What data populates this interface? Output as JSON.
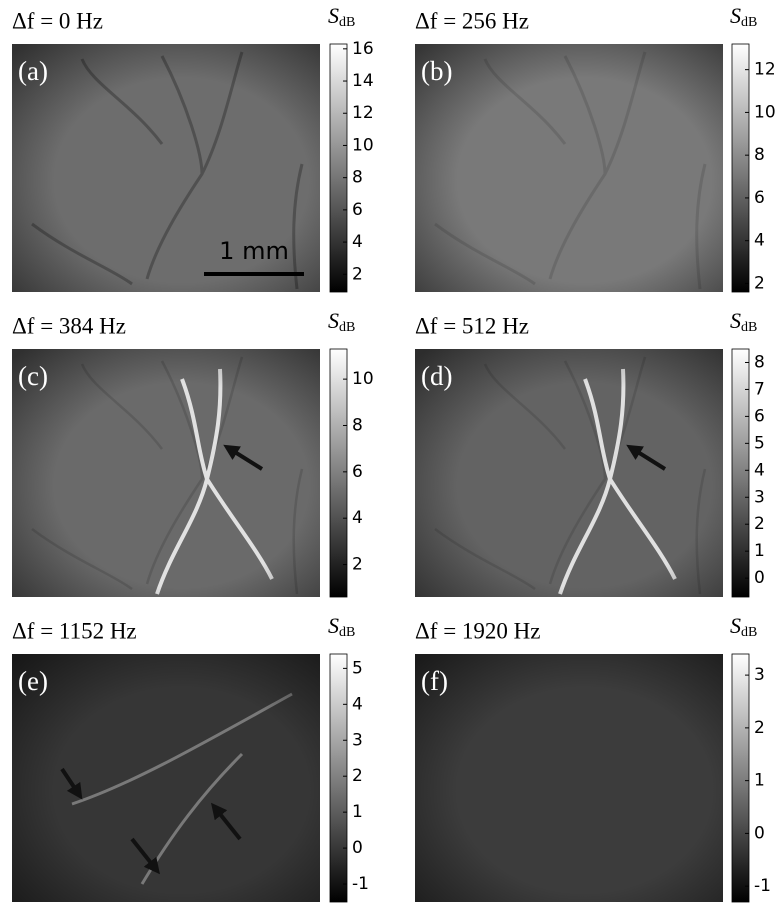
{
  "chart_data": [
    {
      "type": "image",
      "title": "Δf = 0 Hz",
      "panel_label": "(a)",
      "colorbar_label": "S",
      "colorbar_label_sub": "dB",
      "clim": [
        0.9,
        16.3
      ],
      "cticks": [
        2,
        4,
        6,
        8,
        10,
        12,
        14,
        16
      ],
      "scale_bar_label": "1 mm"
    },
    {
      "type": "image",
      "title": "Δf = 256 Hz",
      "panel_label": "(b)",
      "colorbar_label": "S",
      "colorbar_label_sub": "dB",
      "clim": [
        1.6,
        13.2
      ],
      "cticks": [
        2,
        4,
        6,
        8,
        10,
        12
      ]
    },
    {
      "type": "image",
      "title": "Δf = 384 Hz",
      "panel_label": "(c)",
      "colorbar_label": "S",
      "colorbar_label_sub": "dB",
      "clim": [
        0.6,
        11.3
      ],
      "cticks": [
        2,
        4,
        6,
        8,
        10
      ]
    },
    {
      "type": "image",
      "title": "Δf = 512 Hz",
      "panel_label": "(d)",
      "colorbar_label": "S",
      "colorbar_label_sub": "dB",
      "clim": [
        -0.7,
        8.5
      ],
      "cticks": [
        0,
        1,
        2,
        3,
        4,
        5,
        6,
        7,
        8
      ]
    },
    {
      "type": "image",
      "title": "Δf = 1152 Hz",
      "panel_label": "(e)",
      "colorbar_label": "S",
      "colorbar_label_sub": "dB",
      "clim": [
        -1.5,
        5.4
      ],
      "cticks": [
        -1,
        0,
        1,
        2,
        3,
        4,
        5
      ]
    },
    {
      "type": "image",
      "title": "Δf = 1920 Hz",
      "panel_label": "(f)",
      "colorbar_label": "S",
      "colorbar_label_sub": "dB",
      "clim": [
        -1.3,
        3.4
      ],
      "cticks": [
        -1,
        0,
        1,
        2,
        3
      ]
    }
  ]
}
